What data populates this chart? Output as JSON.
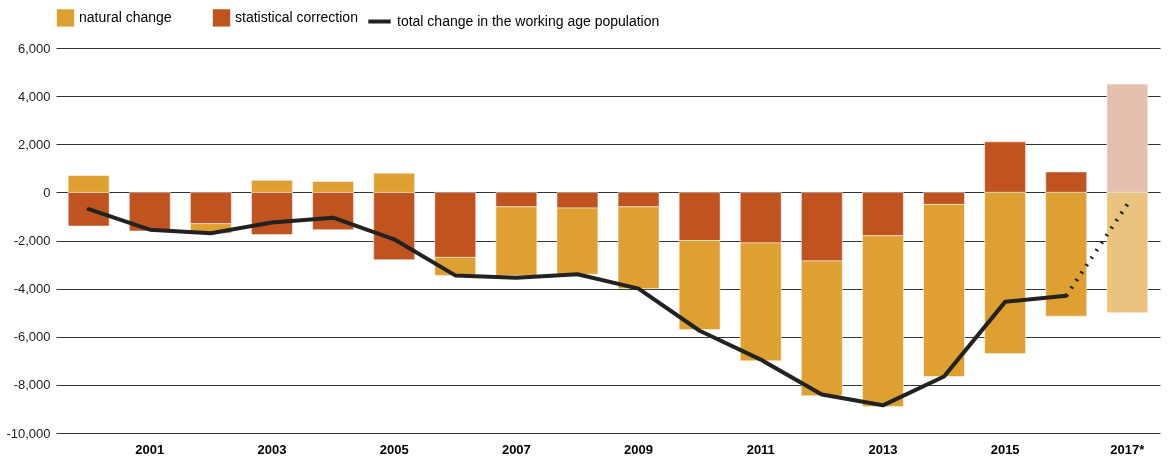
{
  "chart_data": {
    "type": "bar",
    "stacked": true,
    "grid": "y",
    "legend": "top",
    "categories": [
      null,
      "2001",
      null,
      "2003",
      null,
      "2005",
      null,
      "2007",
      null,
      "2009",
      null,
      "2011",
      null,
      "2013",
      null,
      "2015",
      null,
      "2017*"
    ],
    "ylim": [
      -10000,
      6000
    ],
    "yticks": [
      {
        "value": -10000,
        "label": "-10,000"
      },
      {
        "value": -8000,
        "label": "-8,000"
      },
      {
        "value": -6000,
        "label": "-6,000"
      },
      {
        "value": -4000,
        "label": "-4,000"
      },
      {
        "value": -2000,
        "label": "-2,000"
      },
      0,
      {
        "value": 2000,
        "label": "2,000"
      },
      {
        "value": 4000,
        "label": "4,000"
      },
      {
        "value": 6000,
        "label": "6,000"
      }
    ],
    "series": [
      {
        "name": "statistical correction",
        "color": "#c0531f",
        "colors": [
          "#c0531f",
          "#c0531f",
          "#c0531f",
          "#c0531f",
          "#c0531f",
          "#c0531f",
          "#c0531f",
          "#c0531f",
          "#c0531f",
          "#c0531f",
          "#c0531f",
          "#c0531f",
          "#c0531f",
          "#c0531f",
          "#c0531f",
          "#c0531f",
          "#c0531f",
          "#e6c0ae"
        ],
        "values": [
          -1400,
          -1600,
          -1300,
          -1750,
          -1550,
          -2800,
          -2700,
          -600,
          -650,
          -600,
          -2000,
          -2100,
          -2850,
          -1800,
          -500,
          2100,
          850,
          4500
        ]
      },
      {
        "name": "natural change",
        "color": "#dfa032",
        "colors": [
          "#dfa032",
          "#dfa032",
          "#dfa032",
          "#dfa032",
          "#dfa032",
          "#dfa032",
          "#dfa032",
          "#dfa032",
          "#dfa032",
          "#dfa032",
          "#dfa032",
          "#dfa032",
          "#dfa032",
          "#dfa032",
          "#dfa032",
          "#dfa032",
          "#dfa032",
          "#eac47e"
        ],
        "values": [
          700,
          null,
          -400,
          500,
          450,
          800,
          -750,
          -2850,
          -2750,
          -3400,
          -3700,
          -4900,
          -5600,
          -7100,
          -7150,
          -6700,
          -5150,
          -5000
        ]
      },
      {
        "name": "total change in the working age population",
        "type": "line",
        "color": "#222222",
        "line_style": "solid",
        "values": [
          -700,
          -1550,
          -1700,
          -1250,
          -1050,
          -1950,
          -3450,
          -3550,
          -3400,
          -4000,
          -5750,
          -6950,
          -8400,
          -8850,
          -7650,
          -4550,
          -4300,
          null
        ]
      },
      {
        "type": "line",
        "color": "#222222",
        "line_style": "dotted",
        "values": [
          null,
          null,
          null,
          null,
          null,
          null,
          null,
          null,
          null,
          null,
          null,
          null,
          null,
          null,
          null,
          null,
          -4300,
          -500
        ]
      }
    ]
  }
}
